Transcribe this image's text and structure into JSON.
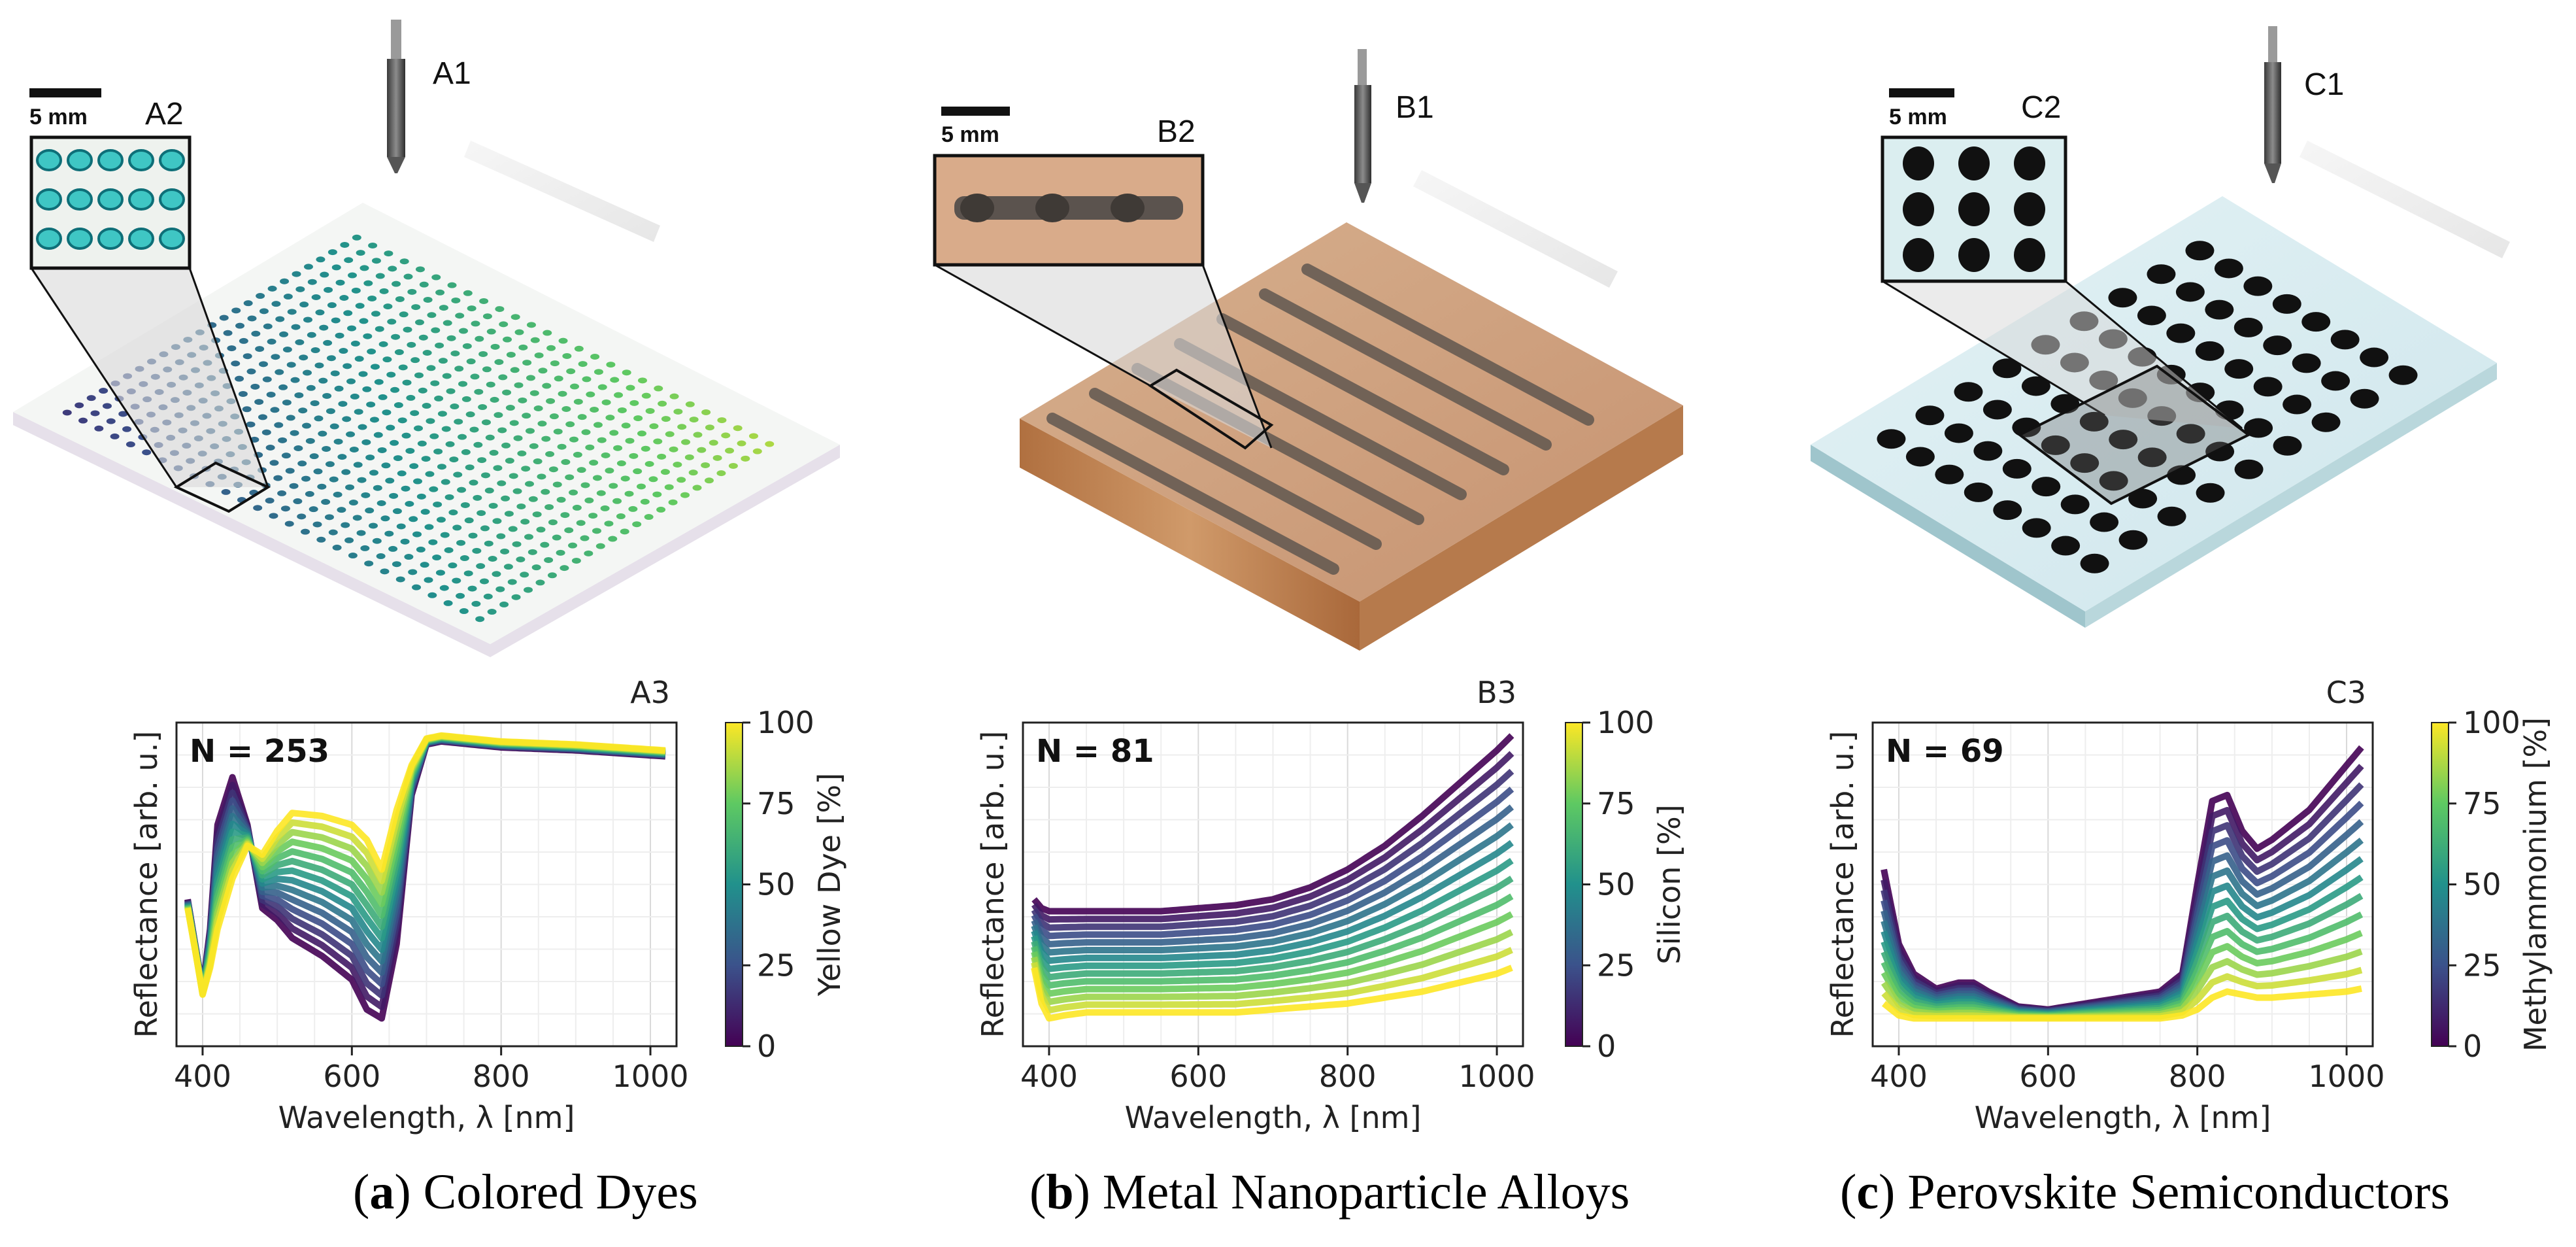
{
  "scale_bar": "5 mm",
  "panels": [
    {
      "id": "a",
      "nozzle_label": "A1",
      "inset_label": "A2",
      "plot_label": "A3",
      "caption_letter": "a",
      "caption_text": "Colored Dyes",
      "colorbar_label": "Yellow Dye [%]"
    },
    {
      "id": "b",
      "nozzle_label": "B1",
      "inset_label": "B2",
      "plot_label": "B3",
      "caption_letter": "b",
      "caption_text": "Metal Nanoparticle Alloys",
      "colorbar_label": "Silicon [%]"
    },
    {
      "id": "c",
      "nozzle_label": "C1",
      "inset_label": "C2",
      "plot_label": "C3",
      "caption_letter": "c",
      "caption_text": "Perovskite Semiconductors",
      "colorbar_label": "Methylammonium [%]"
    }
  ],
  "chart_data": [
    {
      "type": "line",
      "title": "A3",
      "annotation": "N = 253",
      "xlabel": "Wavelength, λ [nm]",
      "ylabel": "Reflectance [arb. u.]",
      "xlim": [
        365,
        1035
      ],
      "xticks": [
        400,
        600,
        800,
        1000
      ],
      "colorbar": {
        "label": "Yellow Dye [%]",
        "range": [
          0,
          100
        ],
        "ticks": [
          0,
          25,
          50,
          75,
          100
        ]
      },
      "series_low": {
        "x": [
          380,
          390,
          400,
          410,
          420,
          440,
          460,
          480,
          500,
          520,
          560,
          600,
          620,
          640,
          660,
          680,
          700,
          720,
          760,
          800,
          900,
          1020
        ],
        "y": [
          0.45,
          0.3,
          0.15,
          0.35,
          0.7,
          0.86,
          0.7,
          0.42,
          0.38,
          0.32,
          0.26,
          0.18,
          0.08,
          0.05,
          0.3,
          0.8,
          0.97,
          0.98,
          0.97,
          0.96,
          0.95,
          0.93
        ]
      },
      "series_high": {
        "x": [
          380,
          390,
          400,
          410,
          420,
          440,
          460,
          480,
          500,
          520,
          560,
          600,
          620,
          640,
          660,
          680,
          700,
          720,
          760,
          800,
          900,
          1020
        ],
        "y": [
          0.42,
          0.28,
          0.13,
          0.22,
          0.35,
          0.52,
          0.63,
          0.6,
          0.68,
          0.74,
          0.73,
          0.7,
          0.65,
          0.55,
          0.75,
          0.9,
          0.99,
          1.0,
          0.99,
          0.98,
          0.97,
          0.95
        ]
      },
      "n_lines": 14
    },
    {
      "type": "line",
      "title": "B3",
      "annotation": "N = 81",
      "xlabel": "Wavelength, λ [nm]",
      "ylabel": "Reflectance [arb. u.]",
      "xlim": [
        365,
        1035
      ],
      "xticks": [
        400,
        600,
        800,
        1000
      ],
      "colorbar": {
        "label": "Silicon [%]",
        "range": [
          0,
          100
        ],
        "ticks": [
          0,
          25,
          50,
          75,
          100
        ]
      },
      "series_low": {
        "x": [
          380,
          390,
          400,
          420,
          450,
          500,
          550,
          600,
          650,
          700,
          750,
          800,
          850,
          900,
          950,
          1000,
          1020
        ],
        "y": [
          0.45,
          0.42,
          0.41,
          0.41,
          0.41,
          0.41,
          0.41,
          0.42,
          0.43,
          0.45,
          0.49,
          0.55,
          0.63,
          0.73,
          0.84,
          0.95,
          1.0
        ]
      },
      "series_high": {
        "x": [
          380,
          390,
          400,
          420,
          450,
          500,
          550,
          600,
          650,
          700,
          750,
          800,
          850,
          900,
          950,
          1000,
          1020
        ],
        "y": [
          0.22,
          0.1,
          0.05,
          0.06,
          0.07,
          0.07,
          0.07,
          0.07,
          0.07,
          0.08,
          0.09,
          0.1,
          0.12,
          0.14,
          0.17,
          0.2,
          0.22
        ]
      },
      "n_lines": 14
    },
    {
      "type": "line",
      "title": "C3",
      "annotation": "N = 69",
      "xlabel": "Wavelength, λ [nm]",
      "ylabel": "Reflectance [arb. u.]",
      "xlim": [
        365,
        1035
      ],
      "xticks": [
        400,
        600,
        800,
        1000
      ],
      "colorbar": {
        "label": "Methylammonium [%]",
        "range": [
          0,
          100
        ],
        "ticks": [
          0,
          25,
          50,
          75,
          100
        ]
      },
      "series_low": {
        "x": [
          380,
          400,
          420,
          450,
          480,
          500,
          520,
          560,
          600,
          650,
          700,
          750,
          780,
          800,
          820,
          840,
          860,
          880,
          900,
          950,
          1000,
          1020
        ],
        "y": [
          0.55,
          0.3,
          0.2,
          0.15,
          0.17,
          0.17,
          0.14,
          0.09,
          0.08,
          0.1,
          0.12,
          0.14,
          0.2,
          0.5,
          0.78,
          0.8,
          0.68,
          0.62,
          0.65,
          0.75,
          0.9,
          0.96
        ]
      },
      "series_high": {
        "x": [
          380,
          400,
          420,
          450,
          480,
          500,
          520,
          560,
          600,
          650,
          700,
          750,
          780,
          800,
          820,
          840,
          860,
          880,
          900,
          950,
          1000,
          1020
        ],
        "y": [
          0.1,
          0.06,
          0.05,
          0.05,
          0.05,
          0.05,
          0.05,
          0.05,
          0.05,
          0.05,
          0.05,
          0.05,
          0.06,
          0.08,
          0.12,
          0.14,
          0.13,
          0.12,
          0.12,
          0.13,
          0.14,
          0.15
        ]
      },
      "n_lines": 14
    }
  ]
}
